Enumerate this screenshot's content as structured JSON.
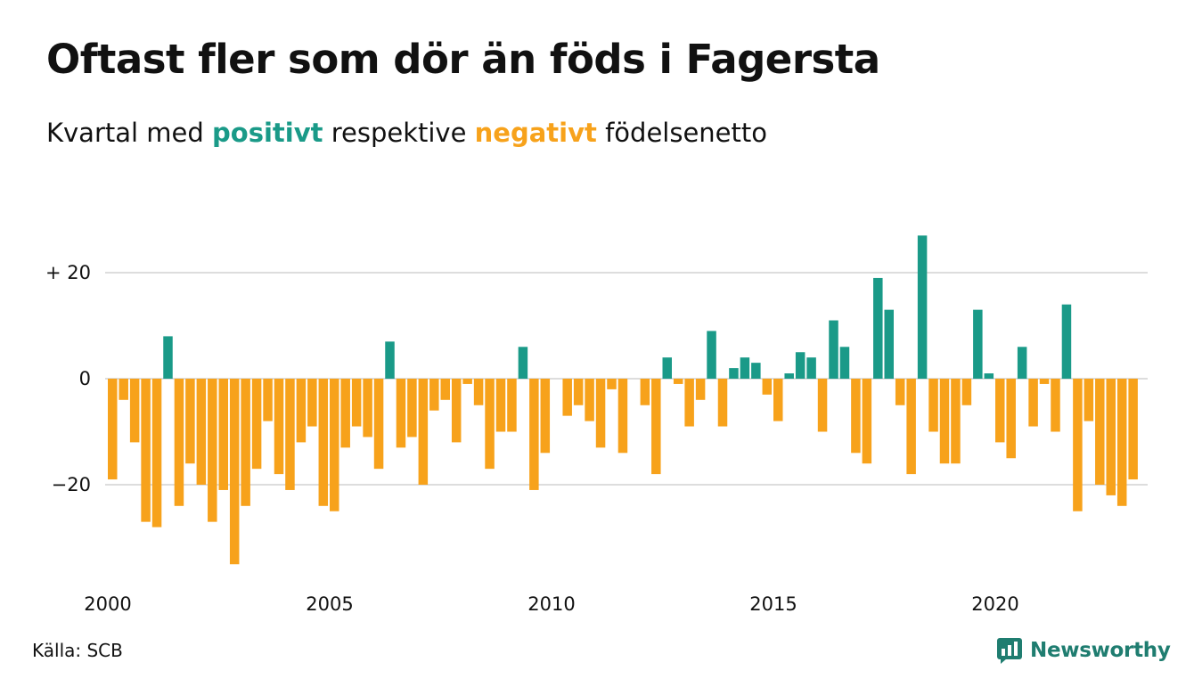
{
  "header": {
    "title": "Oftast fler som dör än föds i Fagersta",
    "subtitle_before": "Kvartal med ",
    "subtitle_positive": "positivt",
    "subtitle_middle": " respektive ",
    "subtitle_negative": "negativt",
    "subtitle_after": " födelsenetto"
  },
  "footer": {
    "source": "Källa: SCB",
    "brand": "Newsworthy",
    "brand_icon": "newsworthy-logo-icon"
  },
  "colors": {
    "positive": "#1a9a88",
    "negative": "#f7a21b",
    "grid": "#dddddd",
    "text": "#111111",
    "brand": "#1f7d70"
  },
  "chart_data": {
    "type": "bar",
    "title": "Oftast fler som dör än föds i Fagersta",
    "subtitle": "Kvartal med positivt respektive negativt födelsenetto",
    "xlabel": "",
    "ylabel": "",
    "x_ticks": [
      2000,
      2005,
      2010,
      2015,
      2020
    ],
    "y_ticks": [
      20,
      0,
      -20
    ],
    "y_tick_labels": [
      "+ 20",
      "0",
      "−20"
    ],
    "ylim": [
      -37,
      31
    ],
    "grid": "horizontal",
    "start_quarter": "2000 Q1",
    "values": [
      -19,
      -4,
      -12,
      -27,
      -28,
      8,
      -24,
      -16,
      -20,
      -27,
      -21,
      -35,
      -24,
      -17,
      -8,
      -18,
      -21,
      -12,
      -9,
      -24,
      -25,
      -13,
      -9,
      -11,
      -17,
      7,
      -13,
      -11,
      -20,
      -6,
      -4,
      -12,
      -1,
      -5,
      -17,
      -10,
      -10,
      6,
      -21,
      -14,
      0,
      -7,
      -5,
      -8,
      -13,
      -2,
      -14,
      0,
      -5,
      -18,
      4,
      -1,
      -9,
      -4,
      9,
      -9,
      2,
      4,
      3,
      -3,
      -8,
      1,
      5,
      4,
      -10,
      11,
      6,
      -14,
      -16,
      19,
      13,
      -5,
      -18,
      27,
      -10,
      -16,
      -16,
      -5,
      13,
      1,
      -12,
      -15,
      6,
      -9,
      -1,
      -10,
      14,
      -25,
      -8,
      -20,
      -22,
      -24,
      -19
    ]
  }
}
